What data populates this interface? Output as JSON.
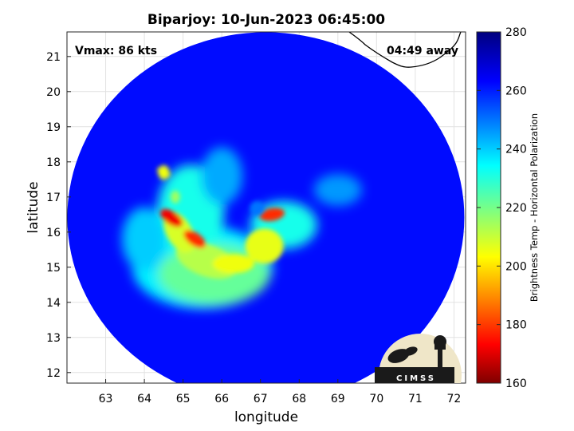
{
  "chart_data": {
    "type": "heatmap",
    "title": "Biparjoy: 10-Jun-2023 06:45:00",
    "xlabel": "longitude",
    "ylabel": "latitude",
    "xlim": [
      62.0,
      72.3
    ],
    "ylim": [
      11.7,
      21.7
    ],
    "xticks": [
      63,
      64,
      65,
      66,
      67,
      68,
      69,
      70,
      71,
      72
    ],
    "yticks": [
      12,
      13,
      14,
      15,
      16,
      17,
      18,
      19,
      20,
      21
    ],
    "grid": true,
    "colorbar": {
      "label": "Brightness Temp - Horizontal Polarization",
      "range": [
        160,
        280
      ],
      "ticks": [
        160,
        180,
        200,
        220,
        240,
        260,
        280
      ],
      "colormap": "jet"
    },
    "annotations": {
      "vmax": "Vmax: 86 kts",
      "time_offset": "04:49 away"
    },
    "swath": {
      "center_lon": 67.2,
      "center_lat": 16.6,
      "background_temp": 262
    },
    "storm_center": {
      "lon": 67.2,
      "lat": 16.5
    },
    "cold_features": [
      {
        "lon": 65.3,
        "lat": 15.8,
        "temp": 178
      },
      {
        "lon": 64.7,
        "lat": 16.4,
        "temp": 172
      },
      {
        "lon": 67.3,
        "lat": 16.5,
        "temp": 178
      },
      {
        "lon": 66.2,
        "lat": 15.0,
        "temp": 205
      },
      {
        "lon": 64.5,
        "lat": 17.7,
        "temp": 205
      }
    ],
    "logo": "CIMSS",
    "colors": {
      "coast": "#000000",
      "grid": "#e2e2e2"
    }
  }
}
